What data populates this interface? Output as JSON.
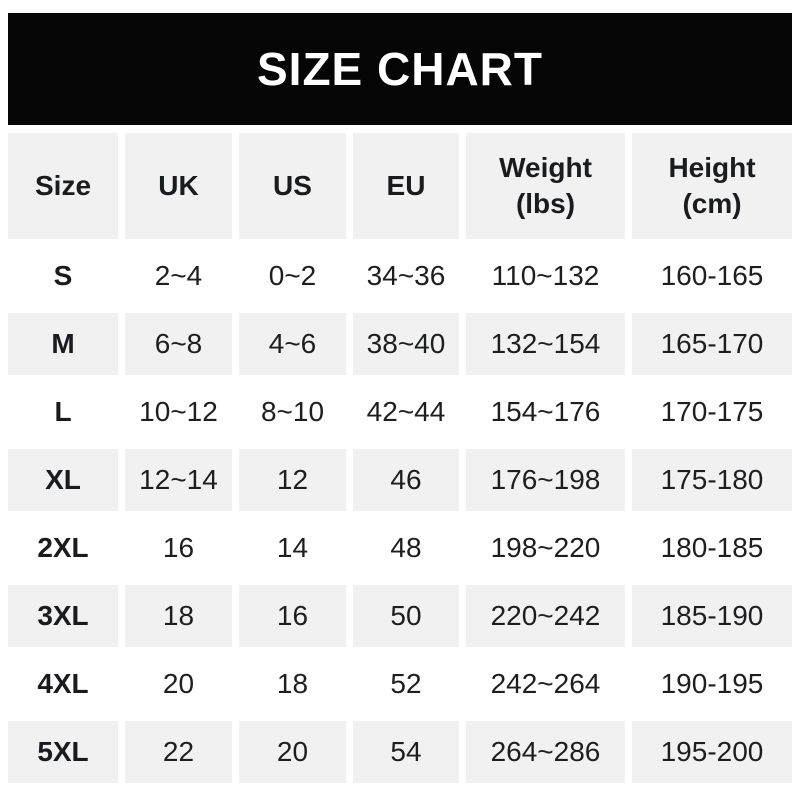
{
  "title": "SIZE CHART",
  "colors": {
    "banner_bg": "#050505",
    "banner_text": "#ffffff",
    "row_alt_bg": "#f1f1f1",
    "row_bg": "#ffffff",
    "text": "#1d1e20"
  },
  "table": {
    "columns": [
      {
        "label": "Size",
        "sub": ""
      },
      {
        "label": "UK",
        "sub": ""
      },
      {
        "label": "US",
        "sub": ""
      },
      {
        "label": "EU",
        "sub": ""
      },
      {
        "label": "Weight",
        "sub": "(lbs)"
      },
      {
        "label": "Height",
        "sub": "(cm)"
      }
    ],
    "rows": [
      [
        "S",
        "2~4",
        "0~2",
        "34~36",
        "110~132",
        "160-165"
      ],
      [
        "M",
        "6~8",
        "4~6",
        "38~40",
        "132~154",
        "165-170"
      ],
      [
        "L",
        "10~12",
        "8~10",
        "42~44",
        "154~176",
        "170-175"
      ],
      [
        "XL",
        "12~14",
        "12",
        "46",
        "176~198",
        "175-180"
      ],
      [
        "2XL",
        "16",
        "14",
        "48",
        "198~220",
        "180-185"
      ],
      [
        "3XL",
        "18",
        "16",
        "50",
        "220~242",
        "185-190"
      ],
      [
        "4XL",
        "20",
        "18",
        "52",
        "242~264",
        "190-195"
      ],
      [
        "5XL",
        "22",
        "20",
        "54",
        "264~286",
        "195-200"
      ]
    ]
  },
  "chart_data": {
    "type": "table",
    "title": "SIZE CHART",
    "columns": [
      "Size",
      "UK",
      "US",
      "EU",
      "Weight (lbs)",
      "Height (cm)"
    ],
    "rows": [
      [
        "S",
        "2~4",
        "0~2",
        "34~36",
        "110~132",
        "160-165"
      ],
      [
        "M",
        "6~8",
        "4~6",
        "38~40",
        "132~154",
        "165-170"
      ],
      [
        "L",
        "10~12",
        "8~10",
        "42~44",
        "154~176",
        "170-175"
      ],
      [
        "XL",
        "12~14",
        "12",
        "46",
        "176~198",
        "175-180"
      ],
      [
        "2XL",
        "16",
        "14",
        "48",
        "198~220",
        "180-185"
      ],
      [
        "3XL",
        "18",
        "16",
        "50",
        "220~242",
        "185-190"
      ],
      [
        "4XL",
        "20",
        "18",
        "52",
        "242~264",
        "190-195"
      ],
      [
        "5XL",
        "22",
        "20",
        "54",
        "264~286",
        "195-200"
      ]
    ]
  }
}
